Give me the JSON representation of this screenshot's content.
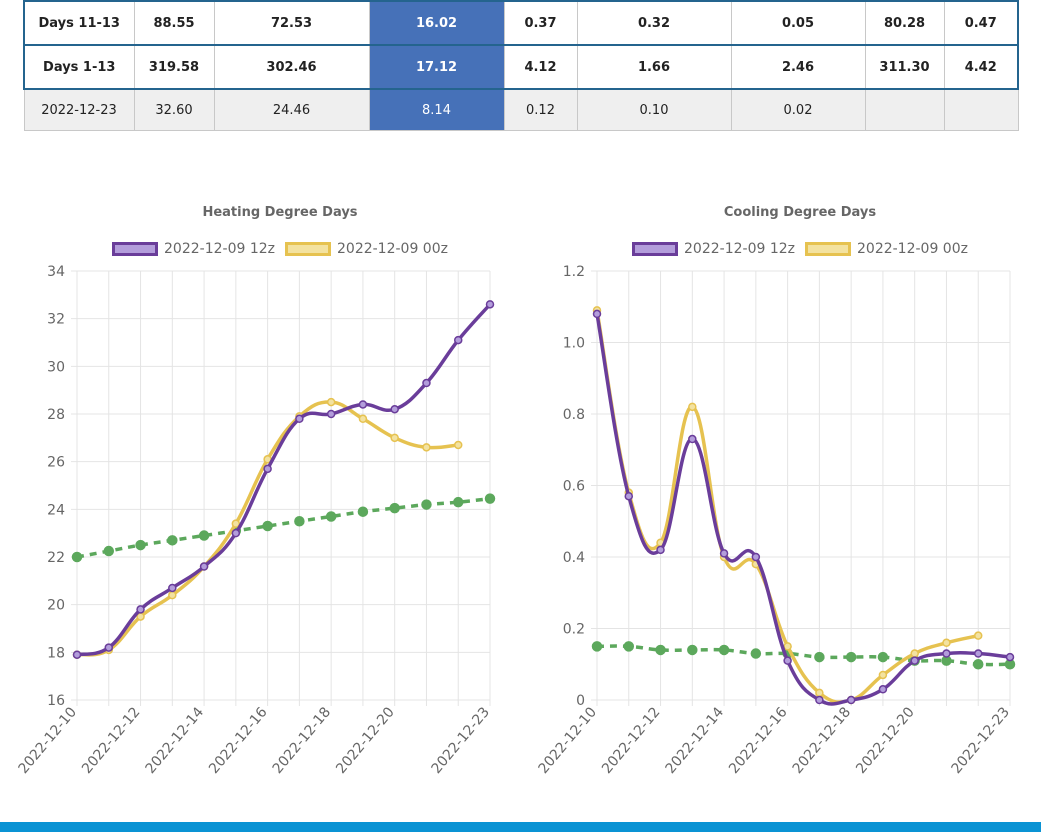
{
  "table": {
    "rows": [
      {
        "style": "bold",
        "cells": [
          "Days 11-13",
          "88.55",
          "72.53",
          "16.02",
          "0.37",
          "0.32",
          "0.05",
          "80.28",
          "0.47"
        ]
      },
      {
        "style": "bold",
        "cells": [
          "Days 1-13",
          "319.58",
          "302.46",
          "17.12",
          "4.12",
          "1.66",
          "2.46",
          "311.30",
          "4.42"
        ]
      },
      {
        "style": "plain",
        "cells": [
          "2022-12-23",
          "32.60",
          "24.46",
          "8.14",
          "0.12",
          "0.10",
          "0.02",
          "",
          ""
        ]
      }
    ]
  },
  "colors": {
    "series_12z": "#6a3d9a",
    "series_12z_fill": "#b39ddb",
    "series_00z": "#e6c250",
    "series_00z_fill": "#f3e2a0",
    "normal": "#5ca85c",
    "highlight_col": "#4671b8",
    "footer": "#0a93d4"
  },
  "chart_data": [
    {
      "type": "line",
      "title": "Heating Degree Days",
      "legend": [
        "2022-12-09 12z",
        "2022-12-09 00z"
      ],
      "legend_position": "top",
      "grid": true,
      "ylim": [
        16,
        34
      ],
      "yticks": [
        16,
        18,
        20,
        22,
        24,
        26,
        28,
        30,
        32,
        34
      ],
      "x": [
        "2022-12-10",
        "2022-12-11",
        "2022-12-12",
        "2022-12-13",
        "2022-12-14",
        "2022-12-15",
        "2022-12-16",
        "2022-12-17",
        "2022-12-18",
        "2022-12-19",
        "2022-12-20",
        "2022-12-21",
        "2022-12-22",
        "2022-12-23"
      ],
      "xticklabels": [
        "2022-12-10",
        "2022-12-12",
        "2022-12-14",
        "2022-12-16",
        "2022-12-18",
        "2022-12-20",
        "2022-12-23"
      ],
      "series": [
        {
          "name": "2022-12-09 12z",
          "values": [
            17.9,
            18.2,
            19.8,
            20.7,
            21.6,
            23.0,
            25.7,
            27.8,
            28.0,
            28.4,
            28.2,
            29.3,
            31.1,
            32.6
          ]
        },
        {
          "name": "2022-12-09 00z",
          "values": [
            17.9,
            18.1,
            19.5,
            20.4,
            21.6,
            23.4,
            26.1,
            27.9,
            28.5,
            27.8,
            27.0,
            26.6,
            26.7,
            null
          ]
        },
        {
          "values": [
            22.0,
            22.25,
            22.5,
            22.7,
            22.9,
            23.1,
            23.3,
            23.5,
            23.7,
            23.9,
            24.05,
            24.2,
            24.3,
            24.45
          ]
        }
      ]
    },
    {
      "type": "line",
      "title": "Cooling Degree Days",
      "legend": [
        "2022-12-09 12z",
        "2022-12-09 00z"
      ],
      "legend_position": "top",
      "grid": true,
      "ylim": [
        0,
        1.2
      ],
      "yticks": [
        "0",
        "0.2",
        "0.4",
        "0.6",
        "0.8",
        "1.0",
        "1.2"
      ],
      "x": [
        "2022-12-10",
        "2022-12-11",
        "2022-12-12",
        "2022-12-13",
        "2022-12-14",
        "2022-12-15",
        "2022-12-16",
        "2022-12-17",
        "2022-12-18",
        "2022-12-19",
        "2022-12-20",
        "2022-12-21",
        "2022-12-22",
        "2022-12-23"
      ],
      "xticklabels": [
        "2022-12-10",
        "2022-12-12",
        "2022-12-14",
        "2022-12-16",
        "2022-12-18",
        "2022-12-20",
        "2022-12-23"
      ],
      "series": [
        {
          "name": "2022-12-09 12z",
          "values": [
            1.08,
            0.57,
            0.42,
            0.73,
            0.41,
            0.4,
            0.11,
            0.0,
            0.0,
            0.03,
            0.11,
            0.13,
            0.13,
            0.12
          ]
        },
        {
          "name": "2022-12-09 00z",
          "values": [
            1.09,
            0.58,
            0.44,
            0.82,
            0.4,
            0.38,
            0.15,
            0.02,
            0.0,
            0.07,
            0.13,
            0.16,
            0.18,
            null
          ]
        },
        {
          "values": [
            0.15,
            0.15,
            0.14,
            0.14,
            0.14,
            0.13,
            0.13,
            0.12,
            0.12,
            0.12,
            0.11,
            0.11,
            0.1,
            0.1
          ]
        }
      ]
    }
  ]
}
